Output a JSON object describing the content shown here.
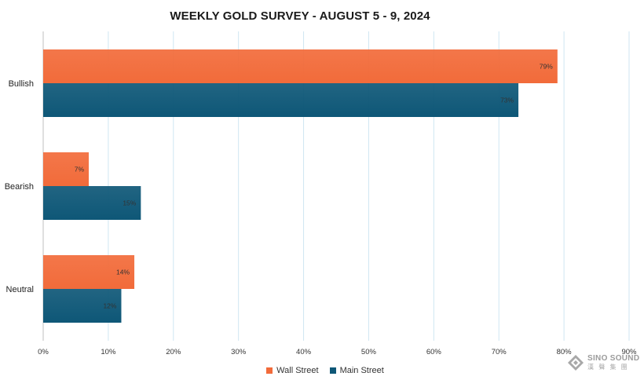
{
  "chart_data": {
    "type": "bar",
    "orientation": "horizontal",
    "title": "WEEKLY GOLD SURVEY - AUGUST 5 - 9, 2024",
    "categories": [
      "Bullish",
      "Bearish",
      "Neutral"
    ],
    "series": [
      {
        "name": "Wall Street",
        "values": [
          79,
          7,
          14
        ],
        "labels": [
          "79%",
          "7%",
          "14%"
        ],
        "color": "#f26b3a"
      },
      {
        "name": "Main Street",
        "values": [
          73,
          15,
          12
        ],
        "labels": [
          "73%",
          "15%",
          "12%"
        ],
        "color": "#0e5777"
      }
    ],
    "x_ticks": [
      0,
      10,
      20,
      30,
      40,
      50,
      60,
      70,
      80,
      90
    ],
    "x_tick_labels": [
      "0%",
      "10%",
      "20%",
      "30%",
      "40%",
      "50%",
      "60%",
      "70%",
      "80%",
      "90%"
    ],
    "xlim": [
      0,
      90
    ],
    "grid": "vertical",
    "legend": "bottom-center",
    "xlabel": "",
    "ylabel": ""
  },
  "watermark": {
    "text": "SINO SOUND",
    "subtext": "漢 聲 集 團"
  },
  "colors": {
    "grid": "#cfe6f2",
    "axis": "#bfbfbf",
    "text": "#333333"
  }
}
